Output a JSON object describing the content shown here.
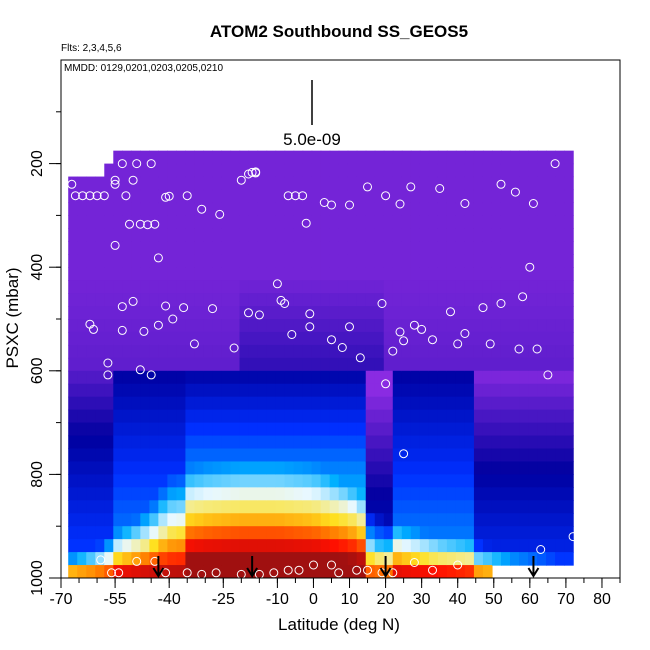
{
  "chart_data": {
    "type": "heatmap",
    "title": "ATOM2 Southbound SS_GEOS5",
    "flights_note": "Flts: 2,3,4,5,6",
    "dates_note": "MMDD: 0129,0201,0203,0205,0210",
    "xlabel": "Latitude (deg N)",
    "ylabel": "PSXC (mbar)",
    "xlim": [
      -70,
      85
    ],
    "ylim": [
      1000,
      0
    ],
    "x_ticks": [
      -70,
      -55,
      -40,
      -25,
      -10,
      0,
      10,
      20,
      30,
      40,
      50,
      60,
      70,
      80
    ],
    "y_ticks": [
      200,
      400,
      600,
      800,
      1000
    ],
    "scale_label": "5.0e-09",
    "colormap": [
      "#8a2be2",
      "#0000a0",
      "#0030ff",
      "#00b0ff",
      "#e8f8ff",
      "#ffe020",
      "#ff8000",
      "#ff1000",
      "#a01010"
    ],
    "plume": [
      {
        "lat": -67,
        "top": 220,
        "low_p": 955,
        "mid_p": 980
      },
      {
        "lat": -60,
        "top": 220,
        "low_p": 940,
        "mid_p": 975
      },
      {
        "lat": -55,
        "top": 175,
        "low_p": 910,
        "mid_p": 960
      },
      {
        "lat": -50,
        "top": 175,
        "low_p": 890,
        "mid_p": 950
      },
      {
        "lat": -45,
        "top": 175,
        "low_p": 860,
        "mid_p": 930
      },
      {
        "lat": -40,
        "top": 175,
        "low_p": 800,
        "mid_p": 900
      },
      {
        "lat": -30,
        "top": 175,
        "low_p": 780,
        "mid_p": 880
      },
      {
        "lat": -20,
        "top": 175,
        "low_p": 770,
        "mid_p": 870
      },
      {
        "lat": -10,
        "top": 175,
        "low_p": 770,
        "mid_p": 870
      },
      {
        "lat": 0,
        "top": 175,
        "low_p": 780,
        "mid_p": 880
      },
      {
        "lat": 10,
        "top": 175,
        "low_p": 820,
        "mid_p": 900
      },
      {
        "lat": 18,
        "top": 175,
        "low_p": 880,
        "mid_p": 940
      },
      {
        "lat": 25,
        "top": 175,
        "low_p": 900,
        "mid_p": 955
      },
      {
        "lat": 35,
        "top": 175,
        "low_p": 920,
        "mid_p": 965
      },
      {
        "lat": 45,
        "top": 175,
        "low_p": 930,
        "mid_p": 975
      },
      {
        "lat": 55,
        "top": 175,
        "low_p": 950,
        "mid_p": 985
      },
      {
        "lat": 68,
        "top": 175,
        "low_p": 960,
        "mid_p": 990
      }
    ],
    "flight_points": [
      [
        -67,
        240
      ],
      [
        -66,
        262
      ],
      [
        -64,
        262
      ],
      [
        -62,
        262
      ],
      [
        -60,
        262
      ],
      [
        -58,
        262
      ],
      [
        -55,
        240
      ],
      [
        -55,
        232
      ],
      [
        -53,
        200
      ],
      [
        -52,
        262
      ],
      [
        -51,
        317
      ],
      [
        -50,
        232
      ],
      [
        -49,
        200
      ],
      [
        -48,
        317
      ],
      [
        -46,
        318
      ],
      [
        -45,
        200
      ],
      [
        -44,
        317
      ],
      [
        -43,
        382
      ],
      [
        -41,
        265
      ],
      [
        -40,
        263
      ],
      [
        -35,
        262
      ],
      [
        -31,
        288
      ],
      [
        -26,
        298
      ],
      [
        -20,
        232
      ],
      [
        -18,
        220
      ],
      [
        -17,
        217
      ],
      [
        -16,
        216
      ],
      [
        -16,
        218
      ],
      [
        -7,
        262
      ],
      [
        -5,
        262
      ],
      [
        -3,
        262
      ],
      [
        -2,
        315
      ],
      [
        3,
        275
      ],
      [
        5,
        280
      ],
      [
        10,
        280
      ],
      [
        15,
        245
      ],
      [
        20,
        262
      ],
      [
        24,
        278
      ],
      [
        27,
        245
      ],
      [
        35,
        248
      ],
      [
        42,
        277
      ],
      [
        52,
        240
      ],
      [
        56,
        255
      ],
      [
        61,
        277
      ],
      [
        67,
        200
      ],
      [
        -55,
        358
      ],
      [
        -53,
        476
      ],
      [
        -53,
        522
      ],
      [
        -50,
        466
      ],
      [
        -48,
        598
      ],
      [
        -47,
        524
      ],
      [
        -45,
        608
      ],
      [
        -43,
        512
      ],
      [
        -41,
        475
      ],
      [
        -39,
        500
      ],
      [
        -36,
        478
      ],
      [
        -33,
        548
      ],
      [
        -28,
        480
      ],
      [
        -22,
        556
      ],
      [
        -18,
        488
      ],
      [
        -15,
        492
      ],
      [
        -10,
        432
      ],
      [
        -9,
        464
      ],
      [
        -8,
        470
      ],
      [
        -6,
        530
      ],
      [
        -1,
        490
      ],
      [
        -1,
        515
      ],
      [
        5,
        540
      ],
      [
        8,
        555
      ],
      [
        10,
        515
      ],
      [
        13,
        575
      ],
      [
        19,
        470
      ],
      [
        20,
        625
      ],
      [
        22,
        562
      ],
      [
        24,
        525
      ],
      [
        25,
        542
      ],
      [
        28,
        512
      ],
      [
        30,
        520
      ],
      [
        33,
        540
      ],
      [
        38,
        486
      ],
      [
        40,
        548
      ],
      [
        42,
        528
      ],
      [
        47,
        478
      ],
      [
        49,
        548
      ],
      [
        52,
        470
      ],
      [
        57,
        558
      ],
      [
        58,
        457
      ],
      [
        60,
        400
      ],
      [
        62,
        558
      ],
      [
        65,
        608
      ],
      [
        -57,
        608
      ],
      [
        -57,
        585
      ],
      [
        -62,
        510
      ],
      [
        -61,
        520
      ],
      [
        -59,
        965
      ],
      [
        -56,
        990
      ],
      [
        -54,
        990
      ],
      [
        -49,
        968
      ],
      [
        -44,
        968
      ],
      [
        -41,
        990
      ],
      [
        -35,
        990
      ],
      [
        -31,
        993
      ],
      [
        -27,
        990
      ],
      [
        -20,
        993
      ],
      [
        -15,
        993
      ],
      [
        -11,
        990
      ],
      [
        -7,
        985
      ],
      [
        -4,
        985
      ],
      [
        0,
        975
      ],
      [
        5,
        975
      ],
      [
        7,
        990
      ],
      [
        12,
        985
      ],
      [
        15,
        985
      ],
      [
        19,
        990
      ],
      [
        22,
        990
      ],
      [
        25,
        760
      ],
      [
        28,
        970
      ],
      [
        33,
        985
      ],
      [
        40,
        975
      ],
      [
        52,
        1000
      ],
      [
        63,
        945
      ],
      [
        72,
        920
      ]
    ],
    "arrows_lat": [
      -43,
      -17,
      20,
      61
    ]
  }
}
